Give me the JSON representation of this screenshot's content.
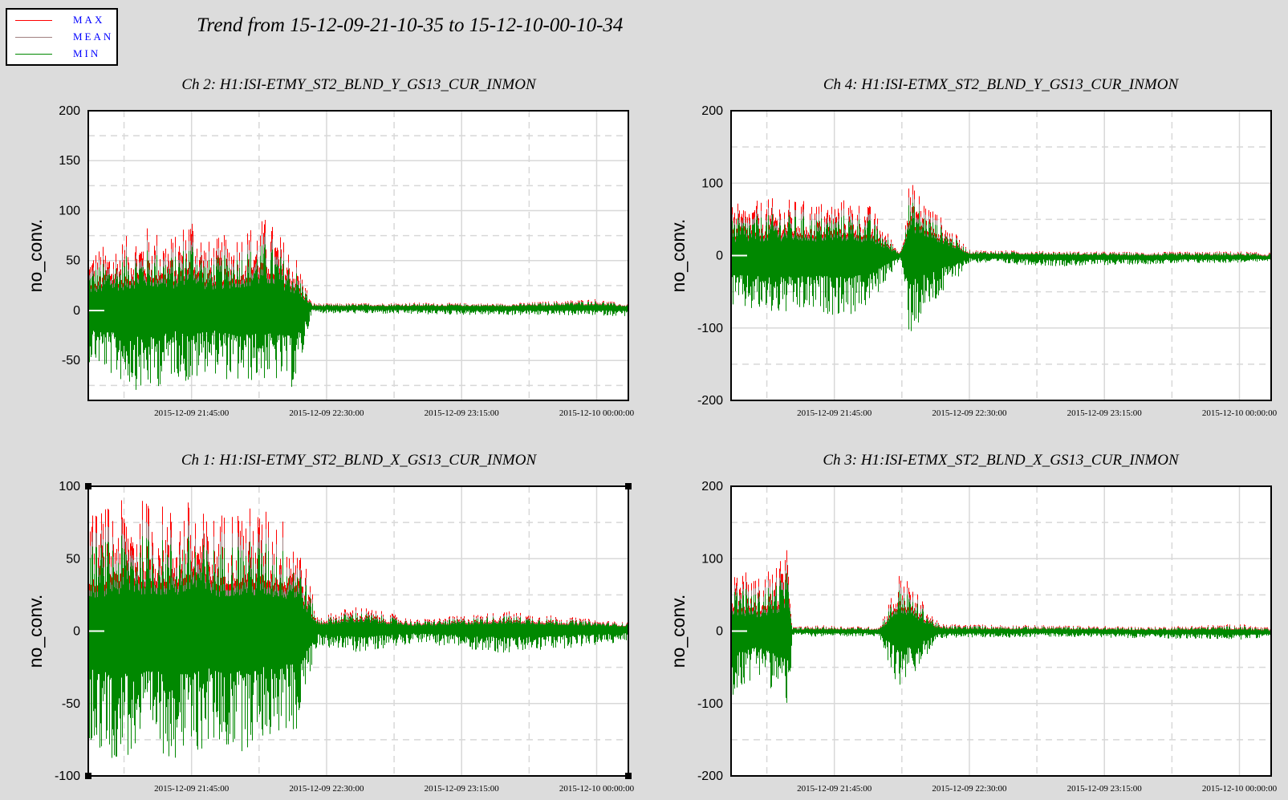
{
  "header": {
    "title": "Trend from 15-12-09-21-10-35 to 15-12-10-00-10-34"
  },
  "legend": {
    "items": [
      {
        "label": "MAX",
        "color": "#ff0000"
      },
      {
        "label": "MEAN",
        "color": "#a08080"
      },
      {
        "label": "MIN",
        "color": "#008800"
      }
    ]
  },
  "chart_data": [
    {
      "type": "line",
      "title": "Ch 2: H1:ISI-ETMY_ST2_BLND_Y_GS13_CUR_INMON",
      "ylabel": "no_conv.",
      "xlabel": "",
      "x_start": "2015-12-09 21:10:35",
      "x_end": "2015-12-10 00:10:34",
      "ylim": [
        -90,
        200
      ],
      "yticks": [
        -50,
        0,
        50,
        100,
        150,
        200
      ],
      "xticks": [
        "2015-12-09 21:45:00",
        "2015-12-09 22:30:00",
        "2015-12-09 23:15:00",
        "2015-12-10 00:00:00"
      ],
      "grid": true,
      "series": [
        {
          "name": "MAX",
          "color": "#ff0000",
          "x": [
            "21:10",
            "21:20",
            "21:30",
            "21:40",
            "21:45",
            "21:50",
            "22:00",
            "22:10",
            "22:20",
            "22:25",
            "22:30",
            "23:00",
            "23:30",
            "24:00",
            "24:10"
          ],
          "values": [
            60,
            70,
            85,
            75,
            105,
            70,
            80,
            95,
            55,
            8,
            7,
            8,
            7,
            12,
            6
          ]
        },
        {
          "name": "MEAN",
          "color": "#a08080",
          "x": [
            "21:10",
            "21:30",
            "21:45",
            "22:00",
            "22:20",
            "22:25",
            "22:30",
            "23:00",
            "23:30",
            "24:00",
            "24:10"
          ],
          "values": [
            2,
            3,
            4,
            3,
            3,
            3,
            3,
            3,
            3,
            3,
            3
          ]
        },
        {
          "name": "MIN",
          "color": "#008800",
          "x": [
            "21:10",
            "21:20",
            "21:30",
            "21:40",
            "21:45",
            "21:50",
            "22:00",
            "22:10",
            "22:20",
            "22:25",
            "22:30",
            "23:00",
            "23:30",
            "24:00",
            "24:10"
          ],
          "values": [
            -50,
            -70,
            -85,
            -65,
            -80,
            -60,
            -75,
            -70,
            -80,
            -2,
            -3,
            -4,
            -5,
            -5,
            -6
          ]
        }
      ]
    },
    {
      "type": "line",
      "title": "Ch 4: H1:ISI-ETMX_ST2_BLND_Y_GS13_CUR_INMON",
      "ylabel": "no_conv.",
      "xlabel": "",
      "x_start": "2015-12-09 21:10:35",
      "x_end": "2015-12-10 00:10:34",
      "ylim": [
        -200,
        200
      ],
      "yticks": [
        -200,
        -100,
        0,
        100,
        200
      ],
      "xticks": [
        "2015-12-09 21:45:00",
        "2015-12-09 22:30:00",
        "2015-12-09 23:15:00",
        "2015-12-10 00:00:00"
      ],
      "grid": true,
      "series": [
        {
          "name": "MAX",
          "color": "#ff0000",
          "x": [
            "21:10",
            "21:25",
            "21:40",
            "21:50",
            "21:57",
            "22:07",
            "22:10",
            "22:30",
            "23:00",
            "23:30",
            "24:00",
            "24:10"
          ],
          "values": [
            70,
            80,
            75,
            80,
            70,
            5,
            105,
            8,
            6,
            5,
            6,
            4
          ]
        },
        {
          "name": "MEAN",
          "color": "#a08080",
          "x": [
            "21:10",
            "21:30",
            "21:57",
            "22:07",
            "22:10",
            "22:30",
            "23:00",
            "23:30",
            "24:00",
            "24:10"
          ],
          "values": [
            0,
            0,
            0,
            0,
            10,
            0,
            -1,
            -2,
            -2,
            -3
          ]
        },
        {
          "name": "MIN",
          "color": "#008800",
          "x": [
            "21:10",
            "21:25",
            "21:40",
            "21:50",
            "21:57",
            "22:07",
            "22:10",
            "22:30",
            "23:00",
            "23:30",
            "24:00",
            "24:10"
          ],
          "values": [
            -75,
            -85,
            -80,
            -85,
            -70,
            -5,
            -115,
            -10,
            -15,
            -12,
            -10,
            -8
          ]
        }
      ]
    },
    {
      "type": "line",
      "title": "Ch 1: H1:ISI-ETMY_ST2_BLND_X_GS13_CUR_INMON",
      "ylabel": "no_conv.",
      "xlabel": "",
      "x_start": "2015-12-09 21:10:35",
      "x_end": "2015-12-10 00:10:34",
      "ylim": [
        -100,
        100
      ],
      "yticks": [
        -100,
        -50,
        0,
        50,
        100
      ],
      "xticks": [
        "2015-12-09 21:45:00",
        "2015-12-09 22:30:00",
        "2015-12-09 23:15:00",
        "2015-12-10 00:00:00"
      ],
      "grid": true,
      "series": [
        {
          "name": "MAX",
          "color": "#ff0000",
          "x": [
            "21:10",
            "21:20",
            "21:30",
            "21:40",
            "21:45",
            "21:50",
            "22:00",
            "22:10",
            "22:20",
            "22:27",
            "22:40",
            "23:00",
            "23:30",
            "24:00",
            "24:10"
          ],
          "values": [
            80,
            90,
            92,
            85,
            93,
            80,
            88,
            85,
            75,
            10,
            18,
            8,
            14,
            8,
            6
          ]
        },
        {
          "name": "MEAN",
          "color": "#a08080",
          "x": [
            "21:10",
            "21:30",
            "21:45",
            "22:00",
            "22:20",
            "22:27",
            "22:40",
            "23:00",
            "23:30",
            "24:00",
            "24:10"
          ],
          "values": [
            3,
            3,
            4,
            3,
            3,
            2,
            2,
            2,
            2,
            2,
            2
          ]
        },
        {
          "name": "MIN",
          "color": "#008800",
          "x": [
            "21:10",
            "21:20",
            "21:30",
            "21:40",
            "21:45",
            "21:50",
            "22:00",
            "22:10",
            "22:20",
            "22:27",
            "22:40",
            "23:00",
            "23:30",
            "24:00",
            "24:10"
          ],
          "values": [
            -80,
            -90,
            -85,
            -88,
            -92,
            -80,
            -85,
            -75,
            -70,
            -10,
            -15,
            -8,
            -16,
            -10,
            -8
          ]
        }
      ]
    },
    {
      "type": "line",
      "title": "Ch 3: H1:ISI-ETMX_ST2_BLND_X_GS13_CUR_INMON",
      "ylabel": "no_conv.",
      "xlabel": "",
      "x_start": "2015-12-09 21:10:35",
      "x_end": "2015-12-10 00:10:34",
      "ylim": [
        -200,
        200
      ],
      "yticks": [
        -200,
        -100,
        0,
        100,
        200
      ],
      "xticks": [
        "2015-12-09 21:45:00",
        "2015-12-09 22:30:00",
        "2015-12-09 23:15:00",
        "2015-12-10 00:00:00"
      ],
      "grid": true,
      "series": [
        {
          "name": "MAX",
          "color": "#ff0000",
          "x": [
            "21:10",
            "21:20",
            "21:30",
            "21:31",
            "21:40",
            "22:00",
            "22:07",
            "22:20",
            "23:00",
            "23:30",
            "24:00",
            "24:10"
          ],
          "values": [
            90,
            75,
            115,
            6,
            8,
            6,
            85,
            10,
            8,
            6,
            10,
            5
          ]
        },
        {
          "name": "MEAN",
          "color": "#a08080",
          "x": [
            "21:10",
            "21:30",
            "21:31",
            "22:00",
            "22:07",
            "22:20",
            "23:00",
            "24:00",
            "24:10"
          ],
          "values": [
            0,
            0,
            0,
            0,
            5,
            0,
            0,
            -1,
            -2
          ]
        },
        {
          "name": "MIN",
          "color": "#008800",
          "x": [
            "21:10",
            "21:20",
            "21:30",
            "21:31",
            "21:40",
            "22:00",
            "22:07",
            "22:20",
            "23:00",
            "23:30",
            "24:00",
            "24:10"
          ],
          "values": [
            -95,
            -60,
            -110,
            -6,
            -8,
            -8,
            -88,
            -10,
            -8,
            -10,
            -12,
            -8
          ]
        }
      ]
    }
  ]
}
